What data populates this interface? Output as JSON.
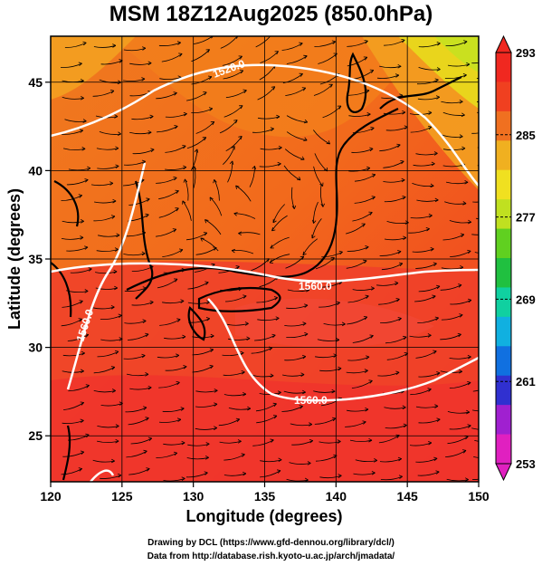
{
  "title": "MSM 18Z12Aug2025 (850.0hPa)",
  "x_axis": {
    "label": "Longitude (degrees)",
    "ticks": [
      "120",
      "125",
      "130",
      "135",
      "140",
      "145",
      "150"
    ]
  },
  "y_axis": {
    "label": "Latitude  (degrees)",
    "ticks": [
      "25",
      "30",
      "35",
      "40",
      "45"
    ]
  },
  "colorbar": {
    "ticks": [
      "293",
      "285",
      "277",
      "269",
      "261",
      "253"
    ],
    "min": 253,
    "max": 293,
    "colors": [
      "#e020c0",
      "#a020d0",
      "#3030d0",
      "#1070e0",
      "#10b0e0",
      "#10d0a0",
      "#20c040",
      "#60d020",
      "#c0e020",
      "#f0e020",
      "#f0b020",
      "#f07020",
      "#f04020",
      "#f02820"
    ]
  },
  "contours": [
    {
      "label": "1560.0"
    },
    {
      "label": "1560.0"
    },
    {
      "label": "1560.0"
    },
    {
      "label": "1520.0"
    }
  ],
  "footer": {
    "line1": "Drawing by DCL (https://www.gfd-dennou.org/library/dcl/)",
    "line2": "Data from http://database.rish.kyoto-u.ac.jp/arch/jmadata/"
  },
  "chart_data": {
    "type": "map",
    "title": "MSM 18Z12Aug2025 (850.0hPa)",
    "xlabel": "Longitude (degrees)",
    "ylabel": "Latitude  (degrees)",
    "xlim": [
      120,
      150
    ],
    "ylim": [
      22.4,
      47.6
    ],
    "x_ticks": [
      120,
      125,
      130,
      135,
      140,
      145,
      150
    ],
    "y_ticks": [
      25,
      30,
      35,
      40,
      45
    ],
    "colorbar_range": [
      253,
      293
    ],
    "colorbar_ticks": [
      293,
      285,
      277,
      269,
      261,
      253
    ],
    "contour_values": [
      1560.0,
      1520.0
    ],
    "grid": true
  }
}
